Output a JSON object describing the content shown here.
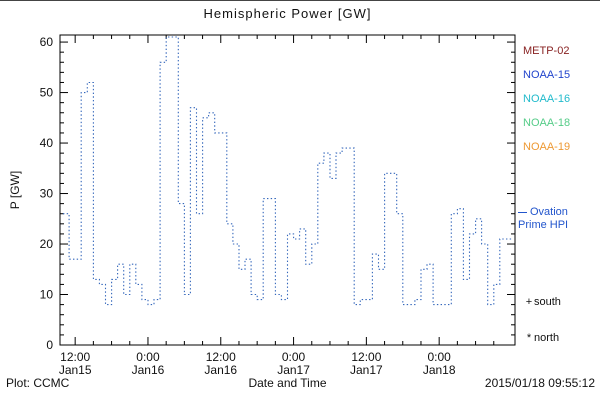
{
  "footer": {
    "left": "Plot: CCMC",
    "right": "2015/01/18 09:55:12"
  },
  "chart_data": {
    "type": "line",
    "title": "Hemispheric Power [GW]",
    "ylabel": "P [GW]",
    "xlabel": "Date and Time",
    "ylim": [
      0,
      61.4
    ],
    "yticks": [
      0,
      10,
      20,
      30,
      40,
      50,
      60
    ],
    "xlim_hours": [
      9.5,
      84.5
    ],
    "xticks": [
      {
        "hour": 12,
        "time": "12:00",
        "date": "Jan15"
      },
      {
        "hour": 24,
        "time": "0:00",
        "date": "Jan16"
      },
      {
        "hour": 36,
        "time": "12:00",
        "date": "Jan16"
      },
      {
        "hour": 48,
        "time": "0:00",
        "date": "Jan17"
      },
      {
        "hour": 60,
        "time": "12:00",
        "date": "Jan17"
      },
      {
        "hour": 72,
        "time": "0:00",
        "date": "Jan18"
      }
    ],
    "grid": false,
    "legend_position": "right-outside",
    "colors": {
      "frame": "#000000",
      "text": "#111111"
    },
    "series": [
      {
        "name": "Ovation Prime HPI",
        "style": "dotted-step",
        "color": "#3366bb",
        "points": [
          [
            10,
            26
          ],
          [
            11,
            17
          ],
          [
            12,
            17
          ],
          [
            13,
            50
          ],
          [
            14,
            52
          ],
          [
            15,
            13
          ],
          [
            16,
            12
          ],
          [
            17,
            8
          ],
          [
            18,
            13
          ],
          [
            19,
            16
          ],
          [
            20,
            10
          ],
          [
            21,
            16
          ],
          [
            22,
            12
          ],
          [
            23,
            9
          ],
          [
            24,
            8
          ],
          [
            25,
            9
          ],
          [
            26,
            56
          ],
          [
            27,
            61
          ],
          [
            28,
            61
          ],
          [
            29,
            28
          ],
          [
            30,
            10
          ],
          [
            31,
            47
          ],
          [
            32,
            26
          ],
          [
            33,
            45
          ],
          [
            34,
            46
          ],
          [
            35,
            42
          ],
          [
            36,
            42
          ],
          [
            37,
            24
          ],
          [
            38,
            20
          ],
          [
            39,
            15
          ],
          [
            40,
            17
          ],
          [
            41,
            10
          ],
          [
            42,
            9
          ],
          [
            43,
            29
          ],
          [
            44,
            29
          ],
          [
            45,
            10
          ],
          [
            46,
            9
          ],
          [
            47,
            22
          ],
          [
            48,
            21
          ],
          [
            49,
            23
          ],
          [
            50,
            16
          ],
          [
            51,
            20
          ],
          [
            52,
            36
          ],
          [
            53,
            38
          ],
          [
            54,
            33
          ],
          [
            55,
            38
          ],
          [
            56,
            39
          ],
          [
            57,
            39
          ],
          [
            58,
            8
          ],
          [
            59,
            9
          ],
          [
            60,
            9
          ],
          [
            61,
            18
          ],
          [
            62,
            15
          ],
          [
            63,
            34
          ],
          [
            64,
            34
          ],
          [
            65,
            26
          ],
          [
            66,
            8
          ],
          [
            67,
            8
          ],
          [
            68,
            9
          ],
          [
            69,
            15
          ],
          [
            70,
            16
          ],
          [
            71,
            8
          ],
          [
            72,
            8
          ],
          [
            73,
            8
          ],
          [
            74,
            26
          ],
          [
            75,
            27
          ],
          [
            76,
            13
          ],
          [
            77,
            22
          ],
          [
            78,
            25
          ],
          [
            79,
            20
          ],
          [
            80,
            8
          ],
          [
            81,
            12
          ],
          [
            82,
            21
          ],
          [
            83,
            21
          ]
        ]
      }
    ],
    "legend_satellites": [
      {
        "label": "METP-02",
        "color": "#882222"
      },
      {
        "label": "NOAA-15",
        "color": "#2244cc"
      },
      {
        "label": "NOAA-16",
        "color": "#22bbcc"
      },
      {
        "label": "NOAA-18",
        "color": "#55cc88"
      },
      {
        "label": "NOAA-19",
        "color": "#ee9933"
      }
    ],
    "legend_line": {
      "line1": "Ovation",
      "line2": "Prime HPI",
      "color": "#2255cc"
    },
    "legend_markers": [
      {
        "symbol": "+",
        "label": "south"
      },
      {
        "symbol": "*",
        "label": "north"
      }
    ]
  }
}
